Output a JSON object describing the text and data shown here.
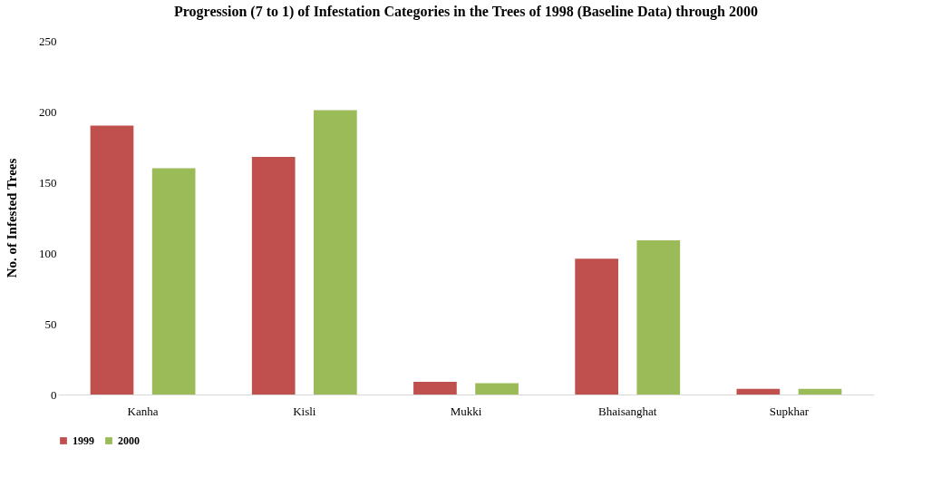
{
  "chart_data": {
    "type": "bar",
    "title": "Progression (7 to 1) of Infestation Categories in the Trees of 1998 (Baseline Data) through 2000",
    "ylabel": "No. of Infested Trees",
    "categories": [
      "Kanha",
      "Kisli",
      "Mukki",
      "Bhaisanghat",
      "Supkhar"
    ],
    "series": [
      {
        "name": "1999",
        "color": "#c0504d",
        "values": [
          190,
          168,
          9,
          96,
          4
        ]
      },
      {
        "name": "2000",
        "color": "#9bbb59",
        "values": [
          160,
          201,
          8,
          109,
          4
        ]
      }
    ],
    "ylim": [
      0,
      250
    ],
    "yticks": [
      0,
      50,
      100,
      150,
      200,
      250
    ],
    "grid": false,
    "legend": "bottom"
  }
}
